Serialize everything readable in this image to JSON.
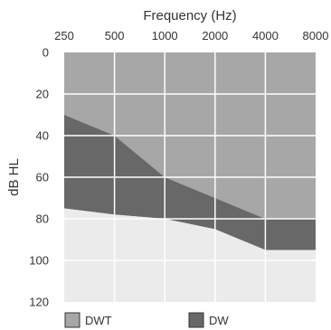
{
  "chart_data": {
    "type": "area",
    "title": "Frequency (Hz)",
    "xlabel": "Frequency (Hz)",
    "ylabel": "dB HL",
    "x": [
      250,
      500,
      1000,
      2000,
      4000,
      8000
    ],
    "x_ticks": [
      "250",
      "500",
      "1000",
      "2000",
      "4000",
      "8000"
    ],
    "x_scale": "log",
    "x_axis_position": "top",
    "y_ticks": [
      "0",
      "20",
      "40",
      "60",
      "80",
      "100",
      "120"
    ],
    "ylim": [
      0,
      120
    ],
    "y_inverted": true,
    "grid": true,
    "legend_position": "bottom-left",
    "series": [
      {
        "name": "DWT",
        "color": "#a7a7a7",
        "from": "top",
        "boundary": [
          30,
          40,
          60,
          70,
          80,
          80
        ]
      },
      {
        "name": "DW",
        "color": "#686868",
        "from": "DWT",
        "boundary": [
          75,
          78,
          80,
          85,
          95,
          95
        ]
      },
      {
        "name": "",
        "color": "#ebebeb",
        "from": "DW",
        "boundary": "bottom"
      }
    ]
  }
}
